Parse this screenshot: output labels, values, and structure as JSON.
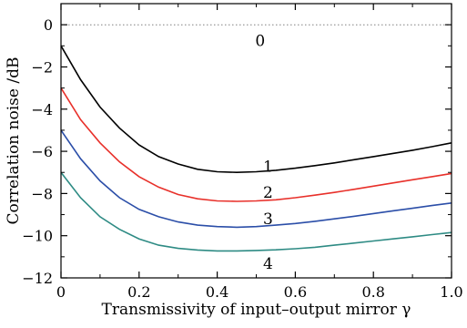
{
  "chart_data": {
    "type": "line",
    "title": "",
    "xlabel": "Transmissivity of input–output mirror γ",
    "ylabel": "Correlation noise /dB",
    "xlim": [
      0,
      1.0
    ],
    "ylim": [
      -12,
      1
    ],
    "x_ticks": [
      "0",
      "0.2",
      "0.4",
      "0.6",
      "0.8",
      "1.0"
    ],
    "x_tick_values": [
      0,
      0.2,
      0.4,
      0.6,
      0.8,
      1.0
    ],
    "y_ticks": [
      "0",
      "−2",
      "−4",
      "−6",
      "−8",
      "−10",
      "−12"
    ],
    "y_tick_values": [
      0,
      -2,
      -4,
      -6,
      -8,
      -10,
      -12
    ],
    "grid": false,
    "legend": "none",
    "series": [
      {
        "label": "0",
        "color": "#808080",
        "style": "dotted",
        "label_pos": [
          0.51,
          -0.75
        ],
        "x": [
          0,
          1.0
        ],
        "y": [
          0,
          0
        ]
      },
      {
        "label": "1",
        "color": "#000000",
        "style": "solid",
        "label_pos": [
          0.53,
          -6.7
        ],
        "x": [
          0,
          0.05,
          0.1,
          0.15,
          0.2,
          0.25,
          0.3,
          0.35,
          0.4,
          0.45,
          0.5,
          0.55,
          0.6,
          0.65,
          0.7,
          0.75,
          0.8,
          0.85,
          0.9,
          0.95,
          1.0
        ],
        "y": [
          -1.0,
          -2.6,
          -3.9,
          -4.9,
          -5.7,
          -6.25,
          -6.6,
          -6.85,
          -6.97,
          -7.0,
          -6.97,
          -6.9,
          -6.8,
          -6.68,
          -6.55,
          -6.4,
          -6.25,
          -6.1,
          -5.95,
          -5.78,
          -5.6
        ]
      },
      {
        "label": "2",
        "color": "#e8302a",
        "style": "solid",
        "label_pos": [
          0.53,
          -7.95
        ],
        "x": [
          0,
          0.05,
          0.1,
          0.15,
          0.2,
          0.25,
          0.3,
          0.35,
          0.4,
          0.45,
          0.5,
          0.55,
          0.6,
          0.65,
          0.7,
          0.75,
          0.8,
          0.85,
          0.9,
          0.95,
          1.0
        ],
        "y": [
          -3.0,
          -4.5,
          -5.6,
          -6.5,
          -7.2,
          -7.7,
          -8.05,
          -8.25,
          -8.35,
          -8.37,
          -8.35,
          -8.3,
          -8.2,
          -8.08,
          -7.95,
          -7.8,
          -7.65,
          -7.5,
          -7.35,
          -7.2,
          -7.05
        ]
      },
      {
        "label": "3",
        "color": "#2b4ea8",
        "style": "solid",
        "label_pos": [
          0.53,
          -9.2
        ],
        "x": [
          0,
          0.05,
          0.1,
          0.15,
          0.2,
          0.25,
          0.3,
          0.35,
          0.4,
          0.45,
          0.5,
          0.55,
          0.6,
          0.65,
          0.7,
          0.75,
          0.8,
          0.85,
          0.9,
          0.95,
          1.0
        ],
        "y": [
          -5.0,
          -6.35,
          -7.4,
          -8.2,
          -8.75,
          -9.1,
          -9.35,
          -9.5,
          -9.57,
          -9.6,
          -9.57,
          -9.5,
          -9.42,
          -9.32,
          -9.2,
          -9.08,
          -8.95,
          -8.82,
          -8.7,
          -8.57,
          -8.45
        ]
      },
      {
        "label": "4",
        "color": "#2e8b84",
        "style": "solid",
        "label_pos": [
          0.53,
          -11.3
        ],
        "x": [
          0,
          0.05,
          0.1,
          0.15,
          0.2,
          0.25,
          0.3,
          0.35,
          0.4,
          0.45,
          0.5,
          0.55,
          0.6,
          0.65,
          0.7,
          0.75,
          0.8,
          0.85,
          0.9,
          0.95,
          1.0
        ],
        "y": [
          -7.0,
          -8.2,
          -9.1,
          -9.7,
          -10.15,
          -10.45,
          -10.6,
          -10.68,
          -10.72,
          -10.72,
          -10.7,
          -10.67,
          -10.62,
          -10.55,
          -10.45,
          -10.35,
          -10.25,
          -10.15,
          -10.05,
          -9.95,
          -9.85
        ]
      }
    ]
  }
}
